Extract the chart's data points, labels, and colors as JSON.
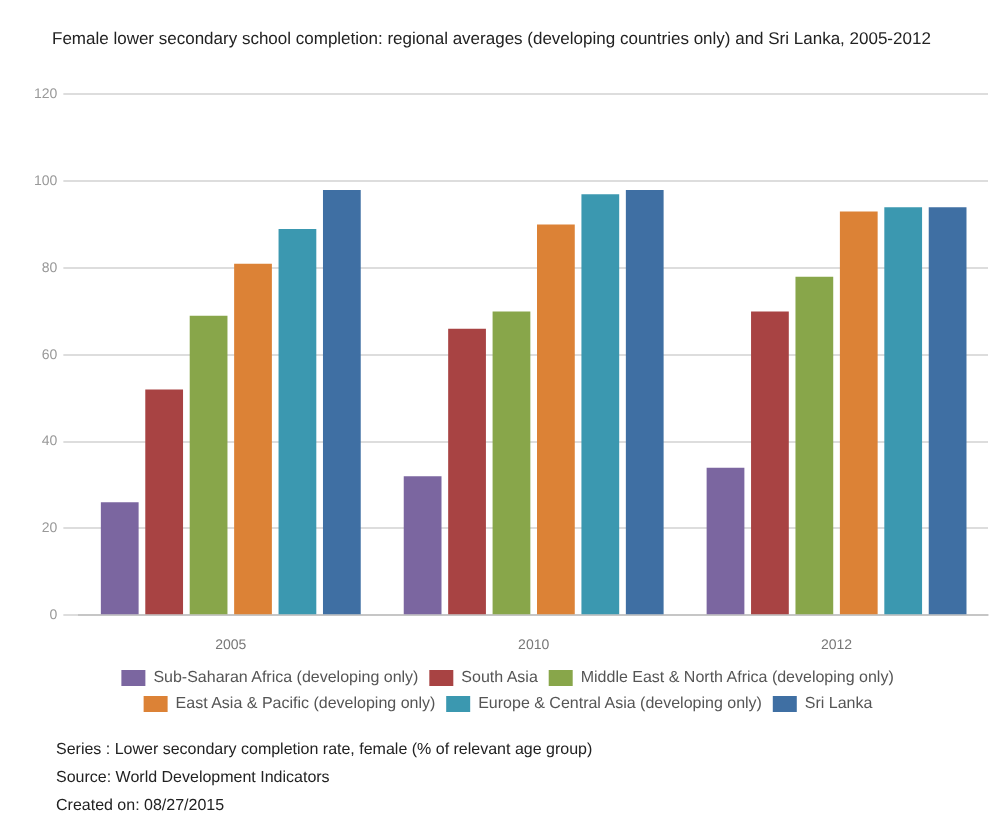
{
  "chart_data": {
    "type": "bar",
    "title": "Female lower secondary school completion: regional averages (developing countries only) and Sri Lanka, 2005-2012",
    "categories": [
      "2005",
      "2010",
      "2012"
    ],
    "series": [
      {
        "name": "Sub-Saharan Africa (developing only)",
        "color": "#7b66a0",
        "values": [
          26,
          32,
          34
        ]
      },
      {
        "name": "South Asia",
        "color": "#a84343",
        "values": [
          52,
          66,
          70
        ]
      },
      {
        "name": "Middle East & North Africa (developing only)",
        "color": "#88a64a",
        "values": [
          69,
          70,
          78
        ]
      },
      {
        "name": "East Asia & Pacific (developing only)",
        "color": "#dc8236",
        "values": [
          81,
          90,
          93
        ]
      },
      {
        "name": "Europe & Central Asia (developing only)",
        "color": "#3b98b0",
        "values": [
          89,
          97,
          94
        ]
      },
      {
        "name": "Sri Lanka",
        "color": "#3f6fa3",
        "values": [
          98,
          98,
          94
        ]
      }
    ],
    "ylim": [
      0,
      120
    ],
    "yticks": [
      0,
      20,
      40,
      60,
      80,
      100,
      120
    ],
    "grid": "y",
    "legend": "bottom",
    "annotations": [
      "Series : Lower secondary completion rate, female (% of relevant age group)",
      "Source: World Development Indicators",
      "Created on: 08/27/2015"
    ]
  }
}
